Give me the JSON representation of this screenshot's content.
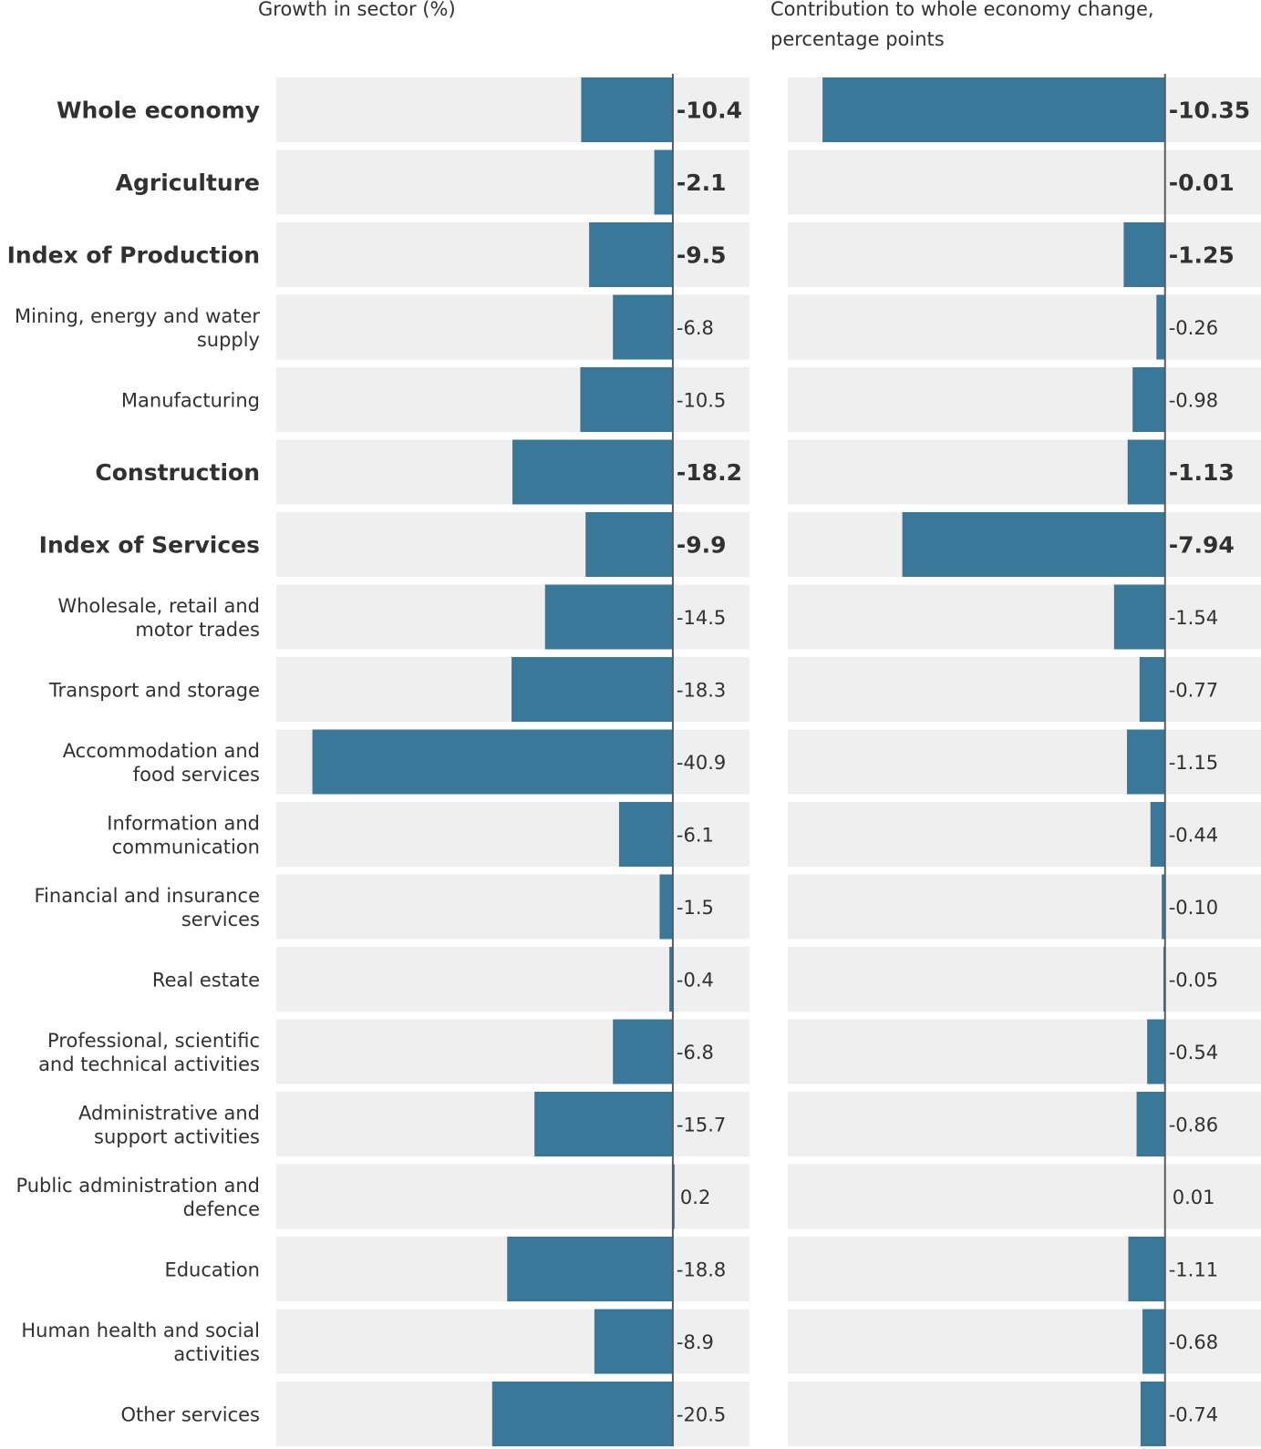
{
  "chart_data": {
    "type": "bar",
    "orientation": "horizontal",
    "panels": [
      {
        "name": "growth",
        "title": "Growth in sector (%)",
        "xlim": [
          -45,
          8.7
        ],
        "decimals": 1
      },
      {
        "name": "contribution",
        "title": "Contribution to whole economy change, percentage points",
        "xlim": [
          -11.4,
          2.9
        ],
        "decimals": 2
      }
    ],
    "categories": [
      "Whole economy",
      "Agriculture",
      "Index of Production",
      "Mining, energy and water supply",
      "Manufacturing",
      "Construction",
      "Index of Services",
      "Wholesale, retail and motor trades",
      "Transport and storage",
      "Accommodation and food services",
      "Information and communication",
      "Financial and insurance services",
      "Real estate",
      "Professional, scientific and technical activities",
      "Administrative and support activities",
      "Public administration and defence",
      "Education",
      "Human health and social activities",
      "Other services"
    ],
    "category_lines": [
      [
        "Whole economy"
      ],
      [
        "Agriculture"
      ],
      [
        "Index of Production"
      ],
      [
        "Mining, energy and water",
        "supply"
      ],
      [
        "Manufacturing"
      ],
      [
        "Construction"
      ],
      [
        "Index of Services"
      ],
      [
        "Wholesale, retail and",
        "motor trades"
      ],
      [
        "Transport and storage"
      ],
      [
        "Accommodation and",
        "food services"
      ],
      [
        "Information and",
        "communication"
      ],
      [
        "Financial and insurance",
        "services"
      ],
      [
        "Real estate"
      ],
      [
        "Professional, scientific",
        "and technical activities"
      ],
      [
        "Administrative and",
        "support activities"
      ],
      [
        "Public administration and",
        "defence"
      ],
      [
        "Education"
      ],
      [
        "Human health and social",
        "activities"
      ],
      [
        "Other services"
      ]
    ],
    "bold_categories": [
      "Whole economy",
      "Agriculture",
      "Index of Production",
      "Construction",
      "Index of Services"
    ],
    "series": [
      {
        "name": "Growth in sector (%)",
        "values": [
          -10.4,
          -2.1,
          -9.5,
          -6.8,
          -10.5,
          -18.2,
          -9.9,
          -14.5,
          -18.3,
          -40.9,
          -6.1,
          -1.5,
          -0.4,
          -6.8,
          -15.7,
          0.2,
          -18.8,
          -8.9,
          -20.5
        ]
      },
      {
        "name": "Contribution to whole economy change, percentage points",
        "values": [
          -10.35,
          -0.01,
          -1.25,
          -0.26,
          -0.98,
          -1.13,
          -7.94,
          -1.54,
          -0.77,
          -1.15,
          -0.44,
          -0.1,
          -0.05,
          -0.54,
          -0.86,
          0.01,
          -1.11,
          -0.68,
          -0.74
        ]
      }
    ],
    "colors": {
      "bar": "#3a7899",
      "track": "#efefef",
      "zero_line": "#5a5a5a",
      "text": "#323132"
    }
  },
  "headers": {
    "left": "Growth in sector (%)",
    "right_line1": "Contribution to whole economy change,",
    "right_line2": "percentage points"
  }
}
